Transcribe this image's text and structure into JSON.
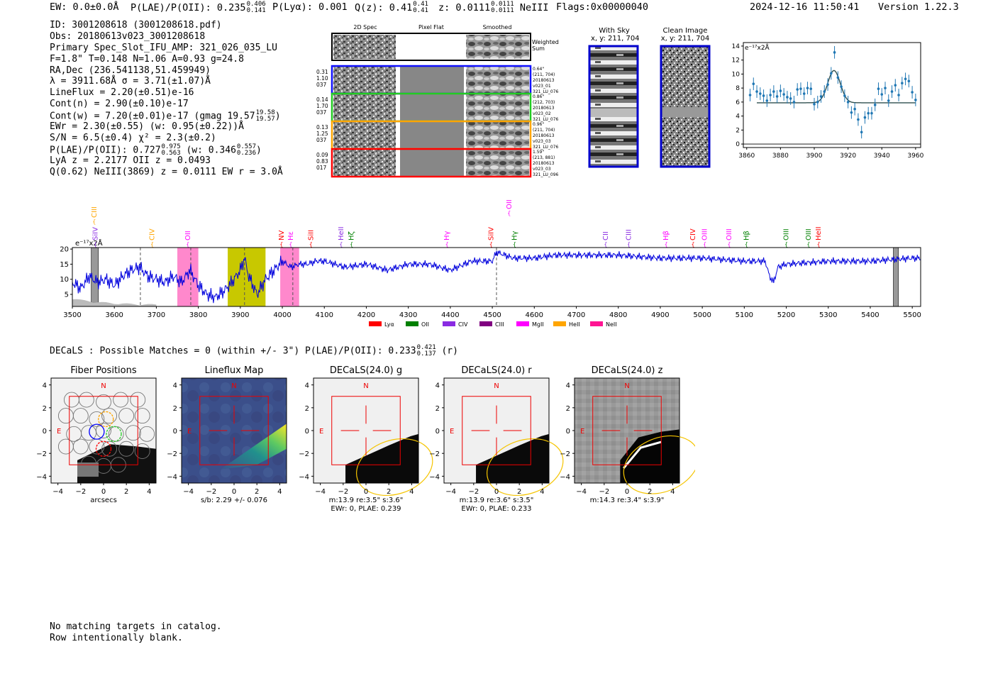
{
  "header": {
    "ew": "EW: 0.0±0.0Å",
    "plae_label": "P(LAE)/P(OII): 0.235",
    "plae_hi": "0.406",
    "plae_lo": "0.141",
    "plya": "P(Lyα): 0.001",
    "qz_label": "Q(z): 0.41",
    "qz_hi": "0.41",
    "qz_lo": "0.41",
    "z_label": "z: 0.0111",
    "z_hi": "0.0111",
    "z_lo": "0.0111",
    "line": "NeIII",
    "flags": "Flags:0x00000040",
    "timestamp": "2024-12-16 11:50:41",
    "version": "Version 1.22.3"
  },
  "info": {
    "id": "ID: 3001208618 (3001208618.pdf)",
    "obs": "Obs: 20180613v023_3001208618",
    "primary": "Primary Spec_Slot_IFU_AMP: 321_026_035_LU",
    "params": "F=1.8\"  T=0.148  N=1.06  A=0.93  g=24.8",
    "radec": "RA,Dec (236.541138,51.459949)",
    "lambda": "λ = 3911.68Å  σ = 3.71(±1.07)Å",
    "lineflux": "LineFlux = 2.20(±0.51)e-16",
    "contn": "Cont(n) = 2.90(±0.10)e-17",
    "contw": "Cont(w) = 7.20(±0.01)e-17 (gmag 19.57",
    "contw_hi": "19.58",
    "contw_lo": "19.57",
    "ewr": "EWr = 2.30(±0.55) (w: 0.95(±0.22))Å",
    "sn": "S/N = 6.5(±0.4)  χ² = 2.3(±0.2)",
    "plae": "P(LAE)/P(OII): 0.727",
    "plae_hi": "0.975",
    "plae_lo": "0.563",
    "plae_w": "(w: 0.346",
    "plae_w_hi": "0.557",
    "plae_w_lo": "0.236",
    "lya": "LyA z = 2.2177   OII z = 0.0493",
    "q": "Q(0.62) NeIII(3869) z = 0.0111   EW r = 3.0Å"
  },
  "cutouts": {
    "col_2d": "2D Spec",
    "col_flat": "Pixel Flat",
    "col_smooth": "Smoothed",
    "weighted": "Weighted",
    "weighted2": "Sum",
    "rows": [
      {
        "left": [
          "0.31",
          "1.10",
          "037"
        ],
        "right": [
          "0.64\"",
          "(211, 704)",
          "20180613",
          "v023_01",
          "321_LU_076"
        ],
        "color": "#1010ff"
      },
      {
        "left": [
          "0.14",
          "1.70",
          "037"
        ],
        "right": [
          "0.86\"",
          "(212, 703)",
          "20180613",
          "v023_02",
          "321_LU_076"
        ],
        "color": "#22cc22"
      },
      {
        "left": [
          "0.13",
          "1.25",
          "037"
        ],
        "right": [
          "0.96\"",
          "(211, 704)",
          "20180613",
          "v023_03",
          "321_LU_076"
        ],
        "color": "#ffa500"
      },
      {
        "left": [
          "0.09",
          "0.83",
          "017"
        ],
        "right": [
          "1.59\"",
          "(213, 881)",
          "20180613",
          "v023_03",
          "321_LU_096"
        ],
        "color": "#ff0000"
      }
    ]
  },
  "sky": {
    "with_sky": "With Sky",
    "with_sky_xy": "x, y: 211, 704",
    "clean": "Clean Image",
    "clean_xy": "x, y: 211, 704"
  },
  "chart_data": [
    {
      "type": "scatter",
      "name": "line-fit",
      "ylabel": "e⁻¹⁷x2Å",
      "xlim": [
        3858,
        3963
      ],
      "ylim": [
        -0.5,
        14.5
      ],
      "xticks": [
        3860,
        3880,
        3900,
        3920,
        3940,
        3960
      ],
      "yticks": [
        0,
        2,
        4,
        6,
        8,
        10,
        12,
        14
      ],
      "points": {
        "x": [
          3862,
          3864,
          3866,
          3868,
          3870,
          3872,
          3874,
          3876,
          3878,
          3880,
          3882,
          3884,
          3886,
          3888,
          3890,
          3892,
          3894,
          3896,
          3898,
          3900,
          3902,
          3904,
          3906,
          3908,
          3910,
          3912,
          3914,
          3916,
          3918,
          3920,
          3922,
          3924,
          3926,
          3928,
          3930,
          3932,
          3934,
          3936,
          3938,
          3940,
          3942,
          3944,
          3946,
          3948,
          3950,
          3952,
          3954,
          3956,
          3958,
          3960
        ],
        "y": [
          7.0,
          8.6,
          7.5,
          7.2,
          6.9,
          6.2,
          7.0,
          7.5,
          6.8,
          7.6,
          7.1,
          6.7,
          6.5,
          6.0,
          7.8,
          7.9,
          7.2,
          8.0,
          7.9,
          5.7,
          6.0,
          6.8,
          7.5,
          8.5,
          10.1,
          13.1,
          9.5,
          8.2,
          6.9,
          6.0,
          4.5,
          5.0,
          3.5,
          1.7,
          3.8,
          4.4,
          4.4,
          5.6,
          7.9,
          7.1,
          8.0,
          6.2,
          7.5,
          8.4,
          7.0,
          8.7,
          9.3,
          9.0,
          7.4,
          6.3
        ],
        "err": [
          0.9,
          0.9,
          0.9,
          0.9,
          0.9,
          0.9,
          0.9,
          0.9,
          0.9,
          0.9,
          0.9,
          0.9,
          0.9,
          0.9,
          0.9,
          0.9,
          0.9,
          0.9,
          0.9,
          0.9,
          0.9,
          0.9,
          0.9,
          0.9,
          0.9,
          0.9,
          0.9,
          0.9,
          0.9,
          0.9,
          0.9,
          0.9,
          0.9,
          0.9,
          0.9,
          0.9,
          0.9,
          0.9,
          0.9,
          0.9,
          0.9,
          0.9,
          0.9,
          0.9,
          0.9,
          0.9,
          0.9,
          0.9,
          0.9,
          0.9
        ]
      },
      "fit": {
        "continuum": 5.9,
        "amplitude": 4.6,
        "center": 3911.68,
        "sigma": 3.71,
        "xmin": 3866,
        "xmax": 3960
      }
    },
    {
      "type": "line",
      "name": "full-spectrum",
      "ylabel": "e⁻¹⁷x2Å",
      "xlim": [
        3500,
        5520
      ],
      "ylim": [
        1,
        20.5
      ],
      "xticks": [
        3500,
        3600,
        3700,
        3800,
        3900,
        4000,
        4100,
        4200,
        4300,
        4400,
        4500,
        4600,
        4700,
        4800,
        4900,
        5000,
        5100,
        5200,
        5300,
        5400,
        5500
      ],
      "yticks": [
        5,
        10,
        15,
        20
      ],
      "bands": [
        {
          "x0": 3750,
          "x1": 3800,
          "color": "#ff88cc"
        },
        {
          "x0": 3870,
          "x1": 3960,
          "color": "#c8c800"
        },
        {
          "x0": 3995,
          "x1": 4040,
          "color": "#ff88cc"
        }
      ],
      "gray_bands": [
        {
          "x0": 3545,
          "x1": 3562
        },
        {
          "x0": 5455,
          "x1": 5467
        }
      ],
      "dashed": [
        3662,
        3782,
        3910,
        4025,
        4510
      ],
      "anchors": {
        "x": [
          3500,
          3520,
          3540,
          3560,
          3580,
          3600,
          3620,
          3640,
          3660,
          3680,
          3700,
          3720,
          3740,
          3760,
          3780,
          3800,
          3820,
          3840,
          3860,
          3880,
          3900,
          3910,
          3920,
          3940,
          3960,
          3980,
          4000,
          4020,
          4040,
          4060,
          4080,
          4100,
          4150,
          4200,
          4250,
          4300,
          4350,
          4400,
          4450,
          4500,
          4510,
          4550,
          4600,
          4650,
          4700,
          4800,
          4900,
          5000,
          5100,
          5150,
          5160,
          5170,
          5180,
          5200,
          5300,
          5400,
          5500,
          5520
        ],
        "y": [
          9,
          7,
          11,
          9,
          10,
          8,
          11,
          13,
          14,
          11,
          10,
          9,
          11,
          9,
          13,
          8,
          5,
          4,
          6,
          9,
          13,
          17,
          11,
          5,
          10,
          13,
          16,
          14,
          15,
          15,
          16,
          16,
          14,
          15,
          13,
          15,
          15,
          13,
          16,
          16,
          19,
          17,
          17,
          18,
          18,
          18,
          17,
          17,
          16,
          16,
          11,
          9,
          14,
          15,
          16,
          16,
          17,
          17
        ]
      },
      "lines_row": [
        {
          "label": "SiIV",
          "x": 3555,
          "color": "#8a2be2"
        },
        {
          "label": "CIV",
          "x": 3690,
          "color": "#ffa500"
        },
        {
          "label": "OII",
          "x": 3775,
          "color": "#ff00ff"
        },
        {
          "label": "NV",
          "x": 3998,
          "color": "#ff0000"
        },
        {
          "label": "Hε",
          "x": 4020,
          "color": "#ff00ff"
        },
        {
          "label": "SiII",
          "x": 4068,
          "color": "#ff0000"
        },
        {
          "label": "HeII",
          "x": 4140,
          "color": "#8a2be2"
        },
        {
          "label": "Hζ",
          "x": 4165,
          "color": "#008000"
        },
        {
          "label": "Hγ",
          "x": 4392,
          "color": "#ff00ff"
        },
        {
          "label": "SiIV",
          "x": 4497,
          "color": "#ff0000"
        },
        {
          "label": "Hγ",
          "x": 4553,
          "color": "#008000"
        },
        {
          "label": "CII",
          "x": 4770,
          "color": "#8a2be2"
        },
        {
          "label": "CIII",
          "x": 4825,
          "color": "#8a2be2"
        },
        {
          "label": "Hβ",
          "x": 4914,
          "color": "#ff00ff"
        },
        {
          "label": "CIV",
          "x": 4978,
          "color": "#ff0000"
        },
        {
          "label": "OIII",
          "x": 5006,
          "color": "#ff00ff"
        },
        {
          "label": "OIII",
          "x": 5064,
          "color": "#ff00ff"
        },
        {
          "label": "Hβ",
          "x": 5105,
          "color": "#008000"
        },
        {
          "label": "OIII",
          "x": 5200,
          "color": "#008000"
        },
        {
          "label": "OIII",
          "x": 5253,
          "color": "#008000"
        },
        {
          "label": "HeII",
          "x": 5277,
          "color": "#ff0000"
        }
      ],
      "lines_high": [
        {
          "label": "CIII",
          "x": 3552,
          "color": "#ffa500",
          "tier": 1
        },
        {
          "label": "OII",
          "x": 4540,
          "color": "#ff00ff",
          "tier": 2
        }
      ],
      "legend": [
        {
          "label": "Lyα",
          "color": "#ff0000"
        },
        {
          "label": "OII",
          "color": "#008000"
        },
        {
          "label": "CIV",
          "color": "#8a2be2"
        },
        {
          "label": "CIII",
          "color": "#800080"
        },
        {
          "label": "MgII",
          "color": "#ff00ff"
        },
        {
          "label": "HeII",
          "color": "#ffa500"
        },
        {
          "label": "NeII",
          "color": "#ff1493"
        }
      ]
    }
  ],
  "decals": {
    "summary": "DECaLS : Possible Matches = 0 (within +/- 3\")  P(LAE)/P(OII): 0.233",
    "summary_hi": "0.421",
    "summary_lo": "0.137",
    "summary_band": "(r)",
    "panels": [
      {
        "title": "Fiber Positions",
        "cap1": "arcsecs",
        "cap2": ""
      },
      {
        "title": "Lineflux Map",
        "cap1": "s/b: 2.29 +/- 0.076",
        "cap2": ""
      },
      {
        "title": "DECaLS(24.0) g",
        "cap1": "m:13.9  re:3.5\"  s:3.6\"",
        "cap2": "EWr: 0, PLAE: 0.239"
      },
      {
        "title": "DECaLS(24.0) r",
        "cap1": "m:13.9  re:3.6\"  s:3.5\"",
        "cap2": "EWr: 0, PLAE: 0.233"
      },
      {
        "title": "DECaLS(24.0) z",
        "cap1": "m:14.3  re:3.4\"  s:3.9\"",
        "cap2": ""
      }
    ],
    "ticks": [
      "−4",
      "−2",
      "0",
      "2",
      "4"
    ],
    "north": "N",
    "east": "E"
  },
  "footer": {
    "line1": "No matching targets in catalog.",
    "line2": "Row intentionally blank."
  }
}
